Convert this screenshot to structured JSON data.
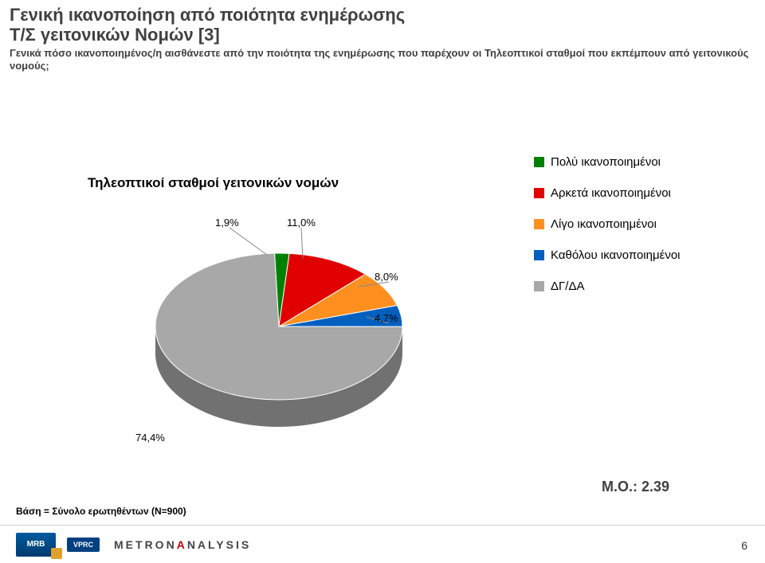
{
  "header": {
    "title_line1": "Γενική ικανοποίηση από ποιότητα ενημέρωσης",
    "title_line2": "T/Σ γειτονικών Νομών [3]",
    "subtitle": "Γενικά πόσο ικανοποιημένος/η αισθάνεστε από την ποιότητα της ενημέρωσης που παρέχουν οι Τηλεοπτικοί σταθμοί που εκπέμπουν από γειτονικούς νομούς;"
  },
  "chart": {
    "type": "pie-3d",
    "title": "Τηλεοπτικοί σταθμοί γειτονικών νομών",
    "background_color": "#ffffff",
    "slices": [
      {
        "label": "Πολύ ικανοποιημένοι",
        "value": 1.9,
        "pct_label": "1,9%",
        "color": "#008000"
      },
      {
        "label": "Αρκετά ικανοποιημένοι",
        "value": 11.0,
        "pct_label": "11,0%",
        "color": "#e00000"
      },
      {
        "label": "Λίγο ικανοποιημένοι",
        "value": 8.0,
        "pct_label": "8,0%",
        "color": "#ff9020"
      },
      {
        "label": "Καθόλου ικανοποιημένοι",
        "value": 4.7,
        "pct_label": "4,7%",
        "color": "#0060c0"
      },
      {
        "label": "ΔΓ/ΔΑ",
        "value": 74.4,
        "pct_label": "74,4%",
        "color": "#a8a8a8"
      }
    ],
    "label_fontsize": 13,
    "legend_fontsize": 15,
    "legend_position": "right",
    "depth_color": "#8c8c8c",
    "aspect_ratio": 1.7
  },
  "mo": {
    "label": "Μ.Ο.: 2.39"
  },
  "base_note": "Βάση = Σύνολο ερωτηθέντων (N=900)",
  "footer": {
    "logo1_text": "MRB",
    "logo2_text": "VPRC",
    "logo3_part1": "METRON",
    "logo3_part2": "A",
    "logo3_part3": "NALYSIS",
    "page_number": "6"
  }
}
